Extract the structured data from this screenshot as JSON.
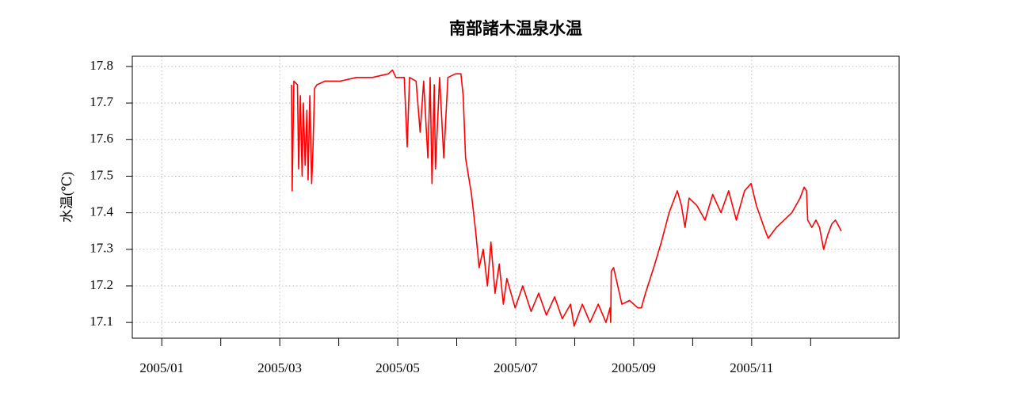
{
  "chart_data": {
    "type": "line",
    "title": "南部諸木温泉水温",
    "ylabel": "水温(℃)",
    "xlim": [
      -0.5,
      12.5
    ],
    "ylim": [
      17.057,
      17.828
    ],
    "xticks": [
      {
        "value": 0,
        "label": "2005/01"
      },
      {
        "value": 1,
        "label": null
      },
      {
        "value": 2,
        "label": "2005/03"
      },
      {
        "value": 3,
        "label": null
      },
      {
        "value": 4,
        "label": "2005/05"
      },
      {
        "value": 5,
        "label": null
      },
      {
        "value": 6,
        "label": "2005/07"
      },
      {
        "value": 7,
        "label": null
      },
      {
        "value": 8,
        "label": "2005/09"
      },
      {
        "value": 9,
        "label": null
      },
      {
        "value": 10,
        "label": "2005/11"
      },
      {
        "value": 11,
        "label": null
      }
    ],
    "yticks": [
      17.1,
      17.2,
      17.3,
      17.4,
      17.5,
      17.6,
      17.7,
      17.8
    ],
    "grid": true,
    "x": [
      2.2,
      2.21,
      2.24,
      2.3,
      2.32,
      2.35,
      2.38,
      2.4,
      2.43,
      2.46,
      2.48,
      2.51,
      2.54,
      2.56,
      2.59,
      2.63,
      2.77,
      3.03,
      3.3,
      3.57,
      3.84,
      3.91,
      3.97,
      4.11,
      4.16,
      4.2,
      4.31,
      4.38,
      4.44,
      4.51,
      4.55,
      4.58,
      4.62,
      4.64,
      4.71,
      4.78,
      4.85,
      4.98,
      5.07,
      5.11,
      5.15,
      5.25,
      5.32,
      5.38,
      5.45,
      5.52,
      5.58,
      5.65,
      5.72,
      5.79,
      5.85,
      5.99,
      6.12,
      6.26,
      6.39,
      6.52,
      6.66,
      6.79,
      6.93,
      6.99,
      7.13,
      7.26,
      7.4,
      7.53,
      7.6,
      7.61,
      7.62,
      7.66,
      7.73,
      7.8,
      7.93,
      8.07,
      8.13,
      8.2,
      8.34,
      8.47,
      8.6,
      8.74,
      8.81,
      8.87,
      8.94,
      9.07,
      9.21,
      9.34,
      9.48,
      9.61,
      9.74,
      9.88,
      9.99,
      10.08,
      10.21,
      10.28,
      10.42,
      10.55,
      10.68,
      10.82,
      10.89,
      10.93,
      10.95,
      11.02,
      11.09,
      11.15,
      11.22,
      11.29,
      11.36,
      11.42,
      11.52
    ],
    "series": [
      {
        "color": "#ff0000",
        "values": [
          17.75,
          17.46,
          17.76,
          17.75,
          17.52,
          17.72,
          17.5,
          17.7,
          17.53,
          17.68,
          17.49,
          17.72,
          17.48,
          17.56,
          17.74,
          17.75,
          17.76,
          17.76,
          17.77,
          17.77,
          17.78,
          17.79,
          17.77,
          17.77,
          17.58,
          17.77,
          17.76,
          17.62,
          17.76,
          17.55,
          17.77,
          17.48,
          17.75,
          17.52,
          17.77,
          17.55,
          17.77,
          17.78,
          17.78,
          17.72,
          17.55,
          17.45,
          17.35,
          17.25,
          17.3,
          17.2,
          17.32,
          17.18,
          17.26,
          17.15,
          17.22,
          17.14,
          17.2,
          17.13,
          17.18,
          17.12,
          17.17,
          17.11,
          17.15,
          17.09,
          17.15,
          17.1,
          17.15,
          17.1,
          17.14,
          17.1,
          17.24,
          17.25,
          17.2,
          17.15,
          17.16,
          17.14,
          17.14,
          17.18,
          17.25,
          17.32,
          17.4,
          17.46,
          17.42,
          17.36,
          17.44,
          17.42,
          17.38,
          17.45,
          17.4,
          17.46,
          17.38,
          17.46,
          17.48,
          17.42,
          17.36,
          17.33,
          17.36,
          17.38,
          17.4,
          17.44,
          17.47,
          17.46,
          17.38,
          17.36,
          17.38,
          17.36,
          17.3,
          17.34,
          17.37,
          17.38,
          17.35
        ]
      }
    ]
  }
}
